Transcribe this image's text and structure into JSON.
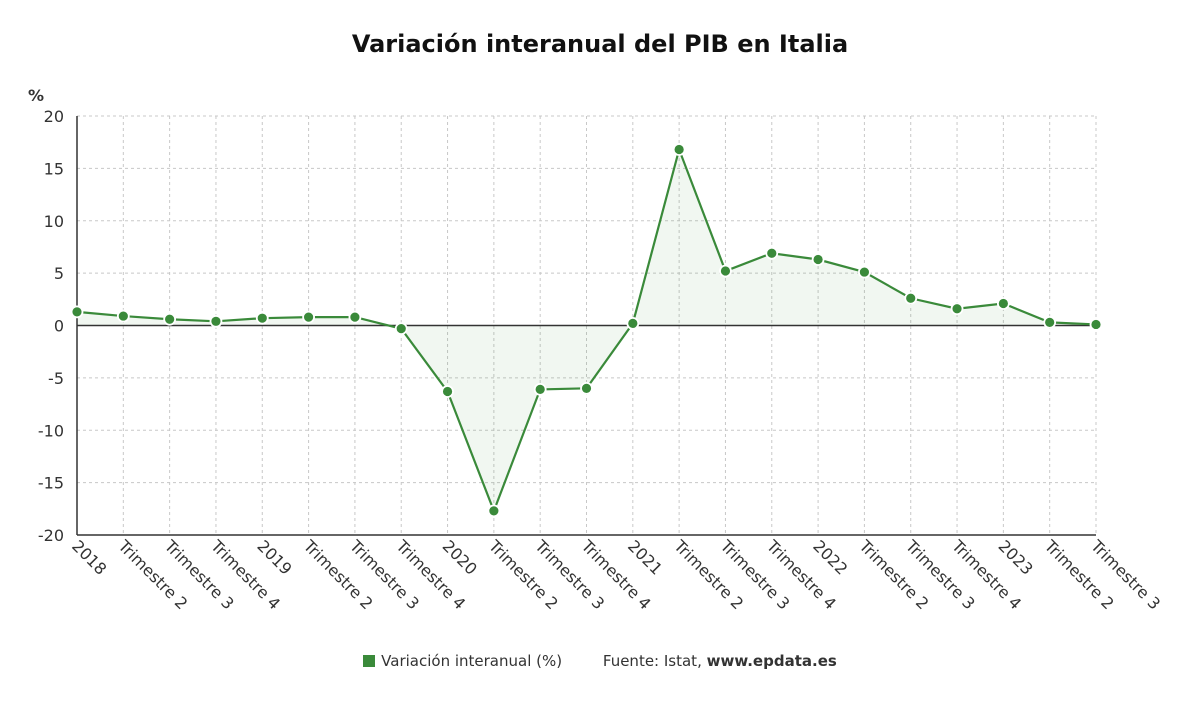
{
  "chart_data": {
    "type": "area",
    "title": "Variación interanual del PIB en Italia",
    "ylabel": "%",
    "ylim": [
      -20,
      20
    ],
    "yticks": [
      -20,
      -15,
      -10,
      -5,
      0,
      5,
      10,
      15,
      20
    ],
    "grid": true,
    "categories": [
      "2018",
      "Trimestre 2",
      "Trimestre 3",
      "Trimestre 4",
      "2019",
      "Trimestre 2",
      "Trimestre 3",
      "Trimestre 4",
      "2020",
      "Trimestre 2",
      "Trimestre 3",
      "Trimestre 4",
      "2021",
      "Trimestre 2",
      "Trimestre 3",
      "Trimestre 4",
      "2022",
      "Trimestre 2",
      "Trimestre 3",
      "Trimestre 4",
      "2023",
      "Trimestre 2",
      "Trimestre 3"
    ],
    "series": [
      {
        "name": "Variación interanual (%)",
        "color": "#3a8a3a",
        "values": [
          1.3,
          0.9,
          0.6,
          0.4,
          0.7,
          0.8,
          0.8,
          -0.3,
          -6.3,
          -17.7,
          -6.1,
          -6.0,
          0.2,
          16.8,
          5.2,
          6.9,
          6.3,
          5.1,
          2.6,
          1.6,
          2.1,
          0.3,
          0.1
        ]
      }
    ],
    "legend_position": "bottom",
    "source_prefix": "Fuente: Istat,",
    "source_site": "www.epdata.es"
  }
}
